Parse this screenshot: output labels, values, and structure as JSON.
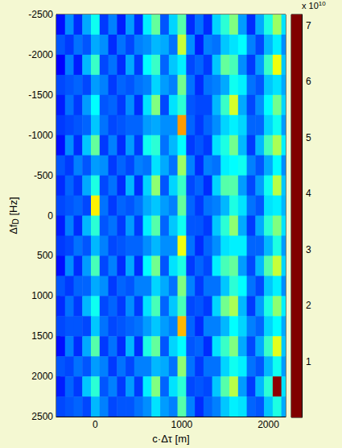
{
  "chart_data": {
    "type": "heatmap",
    "xlabel": "c·Δτ [m]",
    "ylabel": {
      "text": "Δf",
      "subscript": "D",
      "unit": " [Hz]"
    },
    "xlim": [
      -450,
      2200
    ],
    "xticks": [
      0,
      1000,
      2000
    ],
    "ylim": [
      -2500,
      2500
    ],
    "yticks": [
      -2500,
      -2000,
      -1500,
      -1000,
      -500,
      0,
      500,
      1000,
      1500,
      2000,
      2500
    ],
    "cells": {
      "x": [
        -400,
        -300,
        -200,
        -100,
        0,
        100,
        200,
        300,
        400,
        500,
        600,
        700,
        800,
        900,
        1000,
        1100,
        1200,
        1300,
        1400,
        1500,
        1600,
        1700,
        1800,
        1900,
        2000,
        2100,
        2200
      ],
      "y": [
        -2375,
        -2125,
        -1875,
        -1625,
        -1375,
        -1125,
        -875,
        -625,
        -375,
        -125,
        125,
        375,
        625,
        875,
        1125,
        1375,
        1625,
        1875,
        2125,
        2375
      ],
      "values": [
        [
          1.0,
          1.9,
          1.2,
          2.1,
          2.8,
          1.3,
          1.8,
          1.1,
          2.0,
          1.2,
          2.6,
          3.4,
          1.5,
          2.4,
          3.3,
          1.2,
          1.7,
          1.2,
          2.4,
          3.0,
          3.6,
          2.0,
          1.2,
          2.1,
          2.9,
          3.8,
          2.5
        ],
        [
          1.5,
          1.3,
          1.7,
          1.5,
          2.1,
          1.9,
          1.2,
          1.7,
          1.4,
          1.8,
          1.9,
          2.2,
          2.1,
          1.7,
          4.1,
          1.9,
          1.1,
          1.8,
          1.7,
          2.3,
          2.5,
          2.7,
          1.8,
          1.4,
          2.2,
          2.6,
          1.9
        ],
        [
          0.9,
          1.8,
          1.1,
          2.2,
          3.1,
          1.4,
          1.7,
          1.2,
          2.1,
          1.3,
          2.7,
          3.1,
          1.6,
          2.3,
          2.6,
          1.4,
          1.6,
          1.3,
          2.3,
          3.4,
          3.2,
          1.9,
          1.3,
          2.0,
          3.1,
          4.4,
          2.3
        ],
        [
          1.4,
          1.5,
          1.6,
          1.4,
          2.0,
          1.8,
          1.3,
          1.6,
          1.5,
          1.7,
          1.8,
          2.4,
          2.0,
          1.8,
          3.5,
          1.7,
          1.2,
          1.7,
          1.8,
          2.1,
          2.8,
          2.6,
          1.7,
          1.5,
          2.3,
          2.5,
          2.1
        ],
        [
          1.1,
          1.7,
          1.3,
          2.0,
          2.7,
          1.5,
          1.6,
          1.3,
          1.9,
          1.2,
          2.5,
          3.6,
          1.4,
          2.5,
          3.0,
          1.5,
          1.4,
          1.4,
          2.2,
          3.1,
          4.2,
          2.1,
          1.4,
          1.9,
          2.7,
          3.5,
          2.4
        ],
        [
          1.3,
          1.4,
          1.5,
          1.6,
          2.3,
          1.7,
          1.4,
          1.5,
          1.6,
          1.6,
          2.0,
          2.1,
          1.9,
          1.9,
          5.2,
          1.6,
          1.3,
          1.6,
          1.9,
          2.4,
          2.6,
          2.4,
          1.6,
          1.6,
          2.4,
          2.8,
          2.0
        ],
        [
          1.0,
          1.9,
          1.2,
          2.3,
          3.4,
          1.3,
          1.8,
          1.2,
          2.0,
          1.3,
          2.8,
          3.0,
          1.7,
          2.2,
          2.7,
          1.3,
          1.5,
          1.3,
          2.5,
          2.9,
          3.5,
          2.2,
          1.3,
          2.2,
          3.2,
          3.9,
          2.6
        ],
        [
          1.5,
          1.3,
          1.8,
          1.5,
          2.0,
          1.9,
          1.3,
          1.6,
          1.4,
          1.8,
          1.7,
          2.5,
          2.1,
          1.7,
          3.8,
          1.8,
          1.2,
          1.8,
          1.7,
          2.6,
          2.7,
          2.8,
          1.8,
          1.5,
          2.1,
          2.7,
          1.9
        ],
        [
          1.2,
          1.6,
          1.3,
          2.1,
          2.9,
          1.4,
          1.7,
          1.2,
          2.2,
          1.2,
          2.4,
          3.7,
          1.5,
          2.4,
          3.1,
          1.4,
          1.6,
          1.2,
          2.4,
          3.3,
          3.3,
          2.0,
          1.4,
          2.0,
          2.8,
          4.0,
          2.3
        ],
        [
          1.4,
          1.5,
          1.6,
          1.4,
          4.6,
          1.7,
          1.3,
          1.6,
          1.5,
          1.7,
          2.1,
          2.3,
          2.0,
          1.8,
          3.4,
          1.6,
          1.3,
          1.7,
          1.8,
          2.2,
          2.9,
          2.5,
          1.7,
          1.5,
          2.5,
          2.6,
          2.2
        ],
        [
          1.1,
          1.8,
          1.2,
          2.2,
          3.0,
          1.5,
          1.7,
          1.3,
          2.0,
          1.3,
          2.6,
          3.3,
          1.6,
          2.3,
          2.8,
          1.5,
          1.5,
          1.3,
          2.3,
          3.0,
          3.7,
          2.1,
          1.3,
          2.1,
          3.0,
          3.6,
          2.5
        ],
        [
          1.3,
          1.4,
          1.7,
          1.5,
          2.2,
          1.8,
          1.4,
          1.5,
          1.6,
          1.6,
          1.9,
          2.2,
          1.9,
          1.9,
          4.4,
          1.7,
          1.2,
          1.6,
          1.9,
          2.5,
          2.6,
          2.6,
          1.6,
          1.6,
          2.2,
          2.9,
          2.0
        ],
        [
          1.0,
          1.9,
          1.2,
          2.0,
          3.2,
          1.4,
          1.8,
          1.2,
          2.1,
          1.2,
          2.7,
          3.5,
          1.5,
          2.5,
          2.9,
          1.3,
          1.6,
          1.4,
          2.6,
          3.2,
          3.4,
          2.0,
          1.4,
          2.2,
          3.3,
          4.1,
          2.4
        ],
        [
          1.5,
          1.3,
          1.6,
          1.6,
          2.1,
          1.9,
          1.3,
          1.6,
          1.5,
          1.8,
          1.8,
          2.4,
          2.1,
          1.7,
          3.6,
          1.8,
          1.3,
          1.7,
          1.7,
          2.3,
          3.0,
          2.7,
          1.7,
          1.4,
          2.3,
          2.6,
          1.9
        ],
        [
          1.2,
          1.7,
          1.3,
          2.2,
          2.8,
          1.4,
          1.6,
          1.3,
          1.9,
          1.3,
          2.5,
          3.2,
          1.6,
          2.3,
          3.2,
          1.4,
          1.5,
          1.3,
          2.4,
          3.5,
          3.9,
          2.2,
          1.3,
          2.0,
          2.9,
          3.7,
          2.6
        ],
        [
          1.4,
          1.5,
          1.5,
          1.4,
          2.3,
          1.7,
          1.4,
          1.5,
          1.6,
          1.7,
          2.0,
          2.3,
          2.0,
          1.8,
          5.0,
          1.6,
          1.2,
          1.8,
          1.8,
          2.2,
          2.7,
          2.4,
          1.8,
          1.6,
          2.4,
          2.7,
          2.1
        ],
        [
          1.0,
          1.8,
          1.2,
          2.1,
          3.3,
          1.3,
          1.7,
          1.2,
          2.2,
          1.2,
          2.9,
          3.4,
          1.5,
          2.4,
          2.7,
          1.5,
          1.6,
          1.2,
          2.5,
          3.1,
          3.6,
          2.1,
          1.4,
          2.1,
          3.1,
          4.3,
          2.3
        ],
        [
          1.5,
          1.4,
          1.7,
          1.5,
          2.0,
          1.8,
          1.3,
          1.7,
          1.4,
          1.8,
          1.8,
          2.2,
          2.1,
          1.7,
          3.7,
          1.7,
          1.3,
          1.7,
          1.7,
          2.4,
          2.8,
          2.6,
          1.7,
          1.5,
          2.2,
          2.8,
          2.0
        ],
        [
          1.1,
          1.6,
          1.3,
          2.3,
          3.0,
          1.5,
          1.8,
          1.3,
          2.0,
          1.3,
          2.6,
          3.6,
          1.6,
          2.5,
          3.0,
          1.4,
          1.5,
          1.4,
          2.3,
          3.3,
          4.0,
          2.0,
          1.3,
          2.2,
          3.0,
          7.1,
          2.5
        ],
        [
          1.4,
          1.5,
          1.6,
          1.4,
          2.2,
          1.8,
          1.4,
          1.5,
          1.5,
          1.7,
          1.9,
          2.5,
          2.0,
          1.8,
          3.3,
          1.8,
          1.2,
          1.6,
          1.8,
          2.3,
          2.6,
          2.5,
          1.6,
          1.5,
          2.3,
          2.9,
          2.1
        ]
      ]
    },
    "colorbar": {
      "range": [
        0,
        7.2
      ],
      "ticks": [
        1,
        2,
        3,
        4,
        5,
        6,
        7
      ],
      "label": {
        "text": "x 10",
        "superscript": "10"
      }
    }
  }
}
